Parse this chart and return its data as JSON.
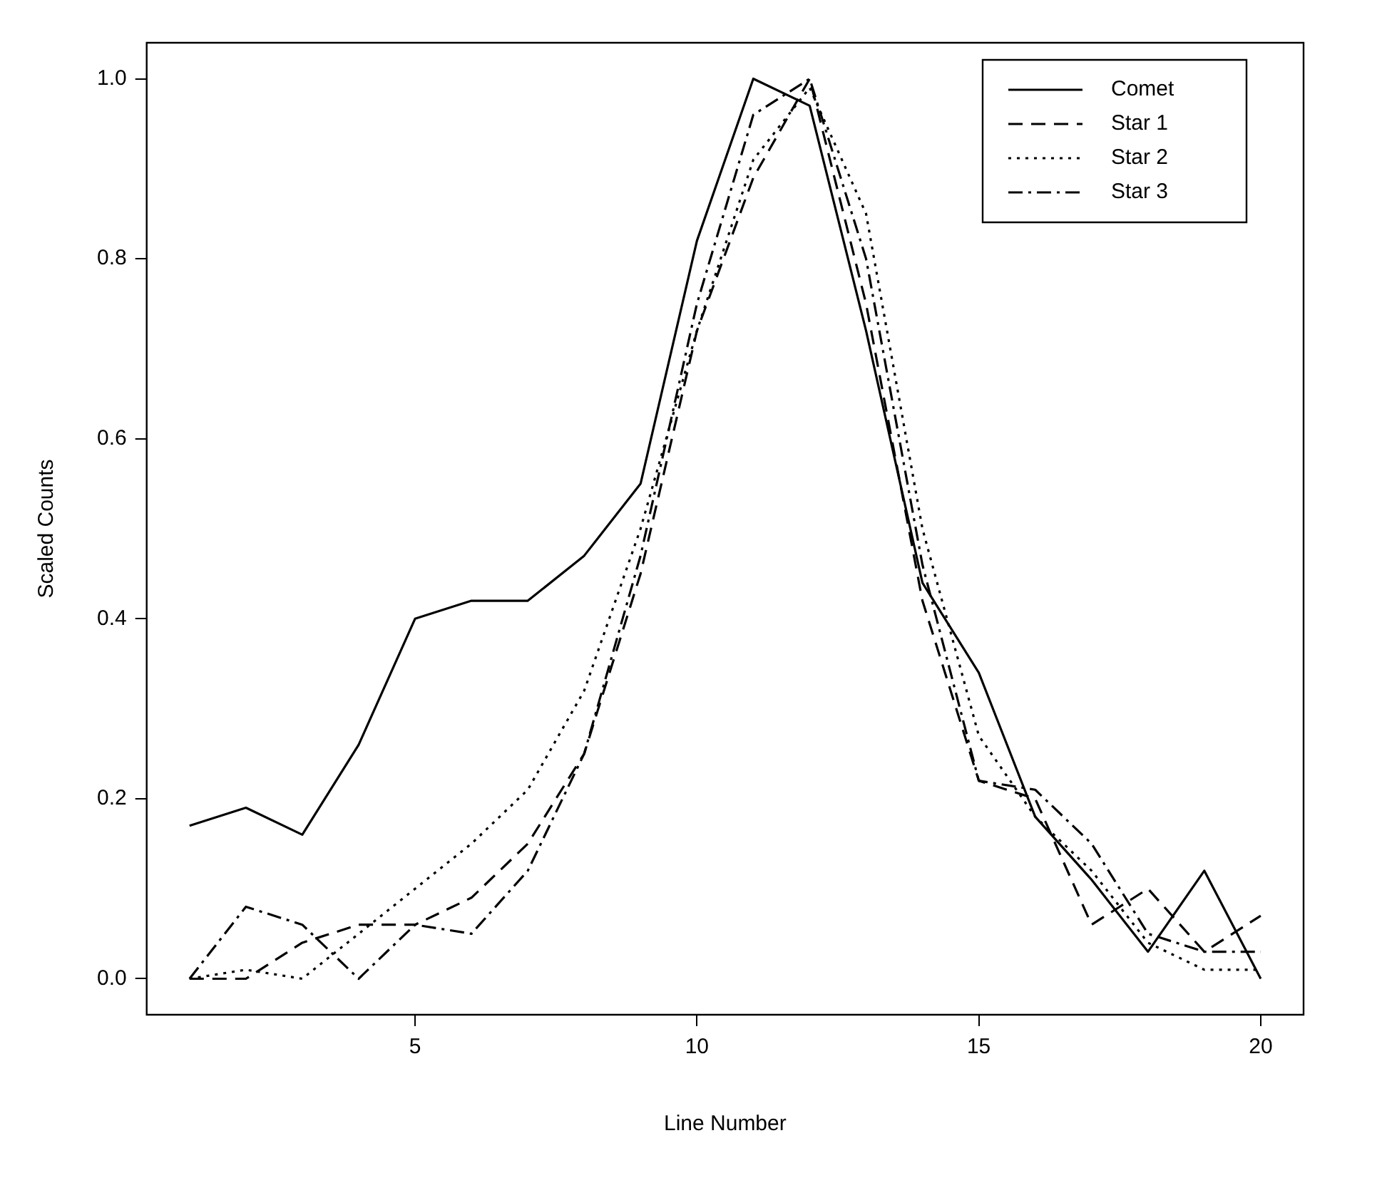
{
  "chart_data": {
    "type": "line",
    "xlabel": "Line Number",
    "ylabel": "Scaled Counts",
    "x": [
      1,
      2,
      3,
      4,
      5,
      6,
      7,
      8,
      9,
      10,
      11,
      12,
      13,
      14,
      15,
      16,
      17,
      18,
      19,
      20
    ],
    "xlim": [
      0.24,
      20.76
    ],
    "xticks": [
      5,
      10,
      15,
      20
    ],
    "ylim": [
      -0.04,
      1.04
    ],
    "yticks": [
      {
        "value": 0,
        "label": "0.0"
      },
      {
        "value": 0.2,
        "label": "0.2"
      },
      {
        "value": 0.4,
        "label": "0.4"
      },
      {
        "value": 0.6,
        "label": "0.6"
      },
      {
        "value": 0.8,
        "label": "0.8"
      },
      {
        "value": 1,
        "label": "1.0"
      }
    ],
    "grid": false,
    "legend": "top right",
    "marker": "none",
    "series": [
      {
        "name": "Comet",
        "color": "#000000",
        "line_style": "solid",
        "values": [
          0.17,
          0.19,
          0.16,
          0.26,
          0.4,
          0.42,
          0.42,
          0.47,
          0.55,
          0.82,
          1.0,
          0.97,
          0.72,
          0.44,
          0.34,
          0.18,
          0.11,
          0.03,
          0.12,
          0.0
        ]
      },
      {
        "name": "Star 1",
        "color": "#000000",
        "line_style": "dashed",
        "values": [
          0,
          0,
          0.04,
          0.06,
          0.06,
          0.09,
          0.15,
          0.25,
          0.45,
          0.72,
          0.89,
          1.0,
          0.75,
          0.42,
          0.22,
          0.2,
          0.06,
          0.1,
          0.03,
          0.07
        ]
      },
      {
        "name": "Star 2",
        "color": "#000000",
        "line_style": "dotted",
        "values": [
          0,
          0.01,
          0,
          0.05,
          0.1,
          0.15,
          0.21,
          0.32,
          0.5,
          0.72,
          0.91,
          0.99,
          0.85,
          0.5,
          0.27,
          0.18,
          0.12,
          0.04,
          0.01,
          0.01
        ]
      },
      {
        "name": "Star 3",
        "color": "#000000",
        "line_style": "dashdot",
        "values": [
          0,
          0.08,
          0.06,
          0,
          0.06,
          0.05,
          0.12,
          0.25,
          0.47,
          0.75,
          0.96,
          1.0,
          0.8,
          0.46,
          0.22,
          0.21,
          0.15,
          0.05,
          0.03,
          0.03
        ]
      }
    ]
  }
}
